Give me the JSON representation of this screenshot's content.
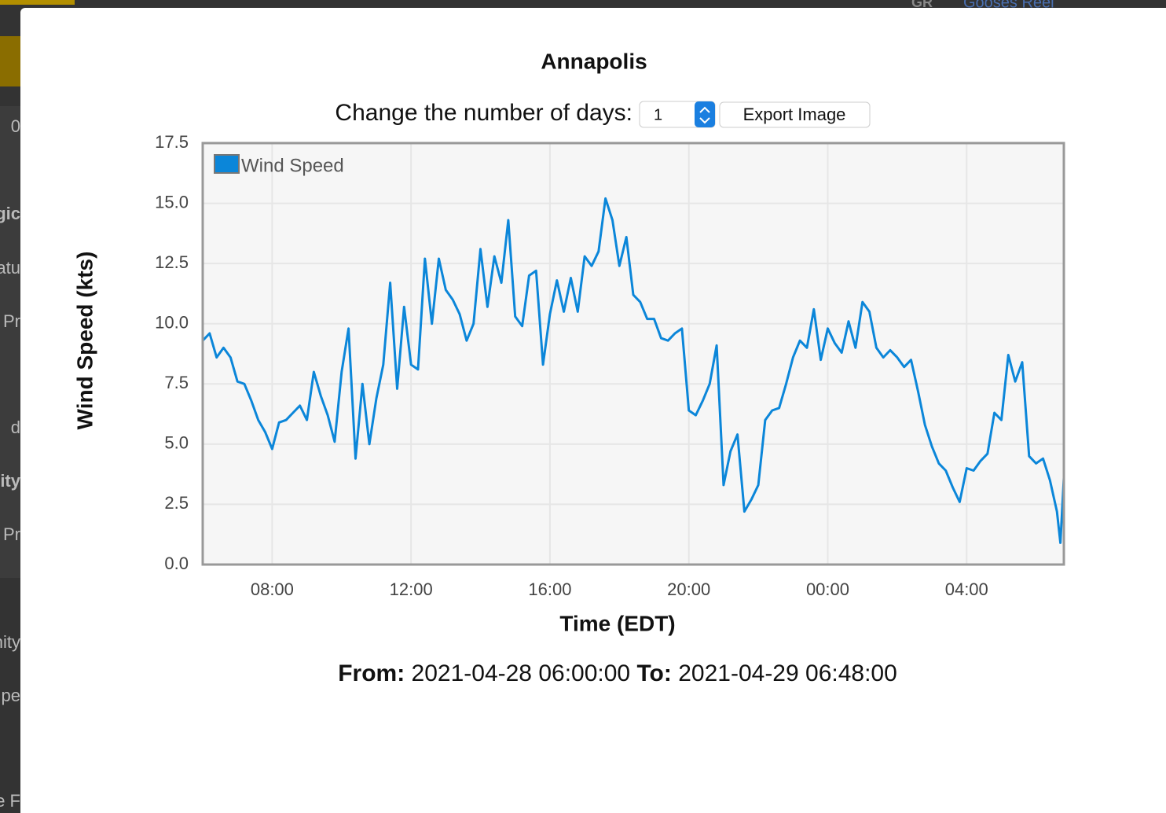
{
  "background": {
    "fragments": [
      "0",
      "gic",
      "atu",
      "Pr",
      "d",
      "lity",
      "Pr",
      "nity",
      "pe",
      "e F"
    ],
    "top_link_icon": "GR",
    "top_link": "Gooses Reel"
  },
  "modal": {
    "title": "Annapolis",
    "days_label": "Change the number of days:",
    "days_value": "1",
    "export_button": "Export Image",
    "range": {
      "from_label": "From:",
      "from": "2021-04-28 06:00:00",
      "to_label": "To:",
      "to": "2021-04-29 06:48:00"
    }
  },
  "chart_data": {
    "type": "line",
    "x_label": "Time (EDT)",
    "y_label": "Wind Speed (kts)",
    "grid": true,
    "legend": "top-left",
    "x": [
      "2021-04-28 06:00",
      "2021-04-28 06:12",
      "2021-04-28 06:24",
      "2021-04-28 06:36",
      "2021-04-28 06:48",
      "2021-04-28 07:00",
      "2021-04-28 07:12",
      "2021-04-28 07:24",
      "2021-04-28 07:36",
      "2021-04-28 07:48",
      "2021-04-28 08:00",
      "2021-04-28 08:12",
      "2021-04-28 08:24",
      "2021-04-28 08:36",
      "2021-04-28 08:48",
      "2021-04-28 09:00",
      "2021-04-28 09:12",
      "2021-04-28 09:24",
      "2021-04-28 09:36",
      "2021-04-28 09:48",
      "2021-04-28 10:00",
      "2021-04-28 10:12",
      "2021-04-28 10:24",
      "2021-04-28 10:36",
      "2021-04-28 10:48",
      "2021-04-28 11:00",
      "2021-04-28 11:12",
      "2021-04-28 11:24",
      "2021-04-28 11:36",
      "2021-04-28 11:48",
      "2021-04-28 12:00",
      "2021-04-28 12:12",
      "2021-04-28 12:24",
      "2021-04-28 12:36",
      "2021-04-28 12:48",
      "2021-04-28 13:00",
      "2021-04-28 13:12",
      "2021-04-28 13:24",
      "2021-04-28 13:36",
      "2021-04-28 13:48",
      "2021-04-28 14:00",
      "2021-04-28 14:12",
      "2021-04-28 14:24",
      "2021-04-28 14:36",
      "2021-04-28 14:48",
      "2021-04-28 15:00",
      "2021-04-28 15:12",
      "2021-04-28 15:24",
      "2021-04-28 15:36",
      "2021-04-28 15:48",
      "2021-04-28 16:00",
      "2021-04-28 16:12",
      "2021-04-28 16:24",
      "2021-04-28 16:36",
      "2021-04-28 16:48",
      "2021-04-28 17:00",
      "2021-04-28 17:12",
      "2021-04-28 17:24",
      "2021-04-28 17:36",
      "2021-04-28 17:48",
      "2021-04-28 18:00",
      "2021-04-28 18:12",
      "2021-04-28 18:24",
      "2021-04-28 18:36",
      "2021-04-28 18:48",
      "2021-04-28 19:00",
      "2021-04-28 19:12",
      "2021-04-28 19:24",
      "2021-04-28 19:36",
      "2021-04-28 19:48",
      "2021-04-28 20:00",
      "2021-04-28 20:12",
      "2021-04-28 20:24",
      "2021-04-28 20:36",
      "2021-04-28 20:48",
      "2021-04-28 21:00",
      "2021-04-28 21:12",
      "2021-04-28 21:24",
      "2021-04-28 21:36",
      "2021-04-28 21:48",
      "2021-04-28 22:00",
      "2021-04-28 22:12",
      "2021-04-28 22:24",
      "2021-04-28 22:36",
      "2021-04-28 22:48",
      "2021-04-28 23:00",
      "2021-04-28 23:12",
      "2021-04-28 23:24",
      "2021-04-28 23:36",
      "2021-04-28 23:48",
      "2021-04-29 00:00",
      "2021-04-29 00:12",
      "2021-04-29 00:24",
      "2021-04-29 00:36",
      "2021-04-29 00:48",
      "2021-04-29 01:00",
      "2021-04-29 01:12",
      "2021-04-29 01:24",
      "2021-04-29 01:36",
      "2021-04-29 01:48",
      "2021-04-29 02:00",
      "2021-04-29 02:12",
      "2021-04-29 02:24",
      "2021-04-29 02:36",
      "2021-04-29 02:48",
      "2021-04-29 03:00",
      "2021-04-29 03:12",
      "2021-04-29 03:24",
      "2021-04-29 03:36",
      "2021-04-29 03:48",
      "2021-04-29 04:00",
      "2021-04-29 04:12",
      "2021-04-29 04:24",
      "2021-04-29 04:36",
      "2021-04-29 04:48",
      "2021-04-29 05:00",
      "2021-04-29 05:12",
      "2021-04-29 05:24",
      "2021-04-29 05:36",
      "2021-04-29 05:48",
      "2021-04-29 06:00",
      "2021-04-29 06:12",
      "2021-04-29 06:24",
      "2021-04-29 06:36",
      "2021-04-29 06:42",
      "2021-04-29 06:48"
    ],
    "series": [
      {
        "name": "Wind Speed",
        "color": "#0b86d9",
        "values": [
          9.3,
          9.6,
          8.6,
          9.0,
          8.6,
          7.6,
          7.5,
          6.8,
          6.0,
          5.5,
          4.8,
          5.9,
          6.0,
          6.3,
          6.6,
          6.0,
          8.0,
          7.0,
          6.2,
          5.1,
          8.0,
          9.8,
          4.4,
          7.5,
          5.0,
          6.9,
          8.3,
          11.7,
          7.3,
          10.7,
          8.3,
          8.1,
          12.7,
          10.0,
          12.7,
          11.4,
          11.0,
          10.4,
          9.3,
          10.0,
          13.1,
          10.7,
          12.8,
          11.7,
          14.3,
          10.3,
          9.9,
          12.0,
          12.2,
          8.3,
          10.4,
          11.8,
          10.5,
          11.9,
          10.5,
          12.8,
          12.4,
          13.0,
          15.2,
          14.3,
          12.4,
          13.6,
          11.2,
          10.9,
          10.2,
          10.2,
          9.4,
          9.3,
          9.6,
          9.8,
          6.4,
          6.2,
          6.8,
          7.5,
          9.1,
          3.3,
          4.7,
          5.4,
          2.2,
          2.7,
          3.3,
          6.0,
          6.4,
          6.5,
          7.5,
          8.6,
          9.3,
          9.0,
          10.6,
          8.5,
          9.8,
          9.2,
          8.8,
          10.1,
          9.0,
          10.9,
          10.5,
          9.0,
          8.6,
          8.9,
          8.6,
          8.2,
          8.5,
          7.2,
          5.8,
          4.9,
          4.2,
          3.9,
          3.2,
          2.6,
          4.0,
          3.9,
          4.3,
          4.6,
          6.3,
          6.0,
          8.7,
          7.6,
          8.4,
          4.5,
          4.2,
          4.4,
          3.5,
          2.2,
          0.9,
          3.6
        ]
      }
    ],
    "xlim": [
      "2021-04-28 06:00",
      "2021-04-29 06:48"
    ],
    "xticks": [
      {
        "value": "2021-04-28 08:00",
        "label": "08:00"
      },
      {
        "value": "2021-04-28 12:00",
        "label": "12:00"
      },
      {
        "value": "2021-04-28 16:00",
        "label": "16:00"
      },
      {
        "value": "2021-04-28 20:00",
        "label": "20:00"
      },
      {
        "value": "2021-04-29 00:00",
        "label": "00:00"
      },
      {
        "value": "2021-04-29 04:00",
        "label": "04:00"
      }
    ],
    "ylim": [
      0,
      17.5
    ],
    "yticks": [
      {
        "value": 0,
        "label": "0.0"
      },
      2.5,
      {
        "value": 5,
        "label": "5.0"
      },
      7.5,
      {
        "value": 10,
        "label": "10.0"
      },
      12.5,
      {
        "value": 15,
        "label": "15.0"
      },
      17.5
    ]
  }
}
